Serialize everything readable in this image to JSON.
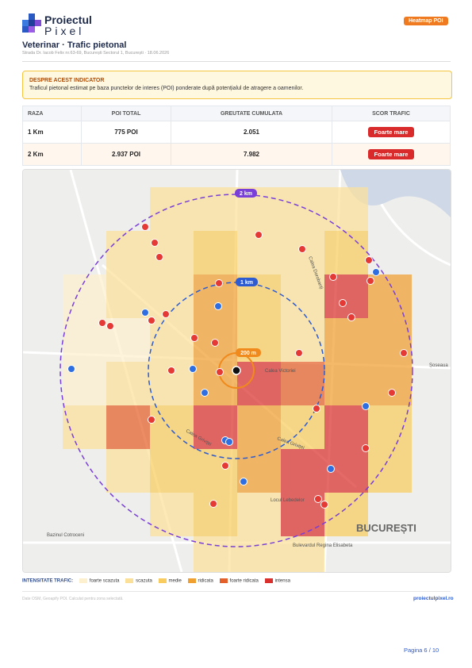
{
  "header": {
    "logo_top": "Proiectul",
    "logo_bottom": "Pixel",
    "badge": "Heatmap POI",
    "title": "Veterinar · Trafic pietonal",
    "subtitle": "Strada Dr. Iacob Felix nr.63-69, București Sectorul 1, București · 18.06.2026"
  },
  "info": {
    "title": "DESPRE ACEST INDICATOR",
    "text": "Traficul pietonal estimat pe baza punctelor de interes (POI) ponderate după potențialul de atragere a oamenilor."
  },
  "table": {
    "headers": [
      "RAZA",
      "POI TOTAL",
      "GREUTATE CUMULATA",
      "SCOR TRAFIC"
    ],
    "rows": [
      [
        "1 Km",
        "775 POI",
        "2.051",
        "Foarte mare"
      ],
      [
        "2 Km",
        "2.937 POI",
        "7.982",
        "Foarte mare"
      ]
    ]
  },
  "map": {
    "ring_labels": [
      "2 km",
      "1 km",
      "200 m"
    ],
    "city": "BUCUREȘTI",
    "streets": [
      "Calea Griviței",
      "Calea Griviței",
      "Bulevardul Regina Elisabeta",
      "Locul Lebedelor",
      "Bazinul Cotroceni",
      "Șoseaua",
      "Calea Dorobanți",
      "Calea Victoriei"
    ]
  },
  "legend": {
    "title": "INTENSITATE TRAFIC:",
    "items": [
      "foarte scazuta",
      "scazuta",
      "medie",
      "ridicata",
      "foarte ridicata",
      "intensa"
    ]
  },
  "footer": {
    "source": "Date OSM, Geoapify POI. Calculat pentru zona selectată.",
    "site": "proiectulpixel.ro",
    "page": "Pagina 6 / 10"
  }
}
